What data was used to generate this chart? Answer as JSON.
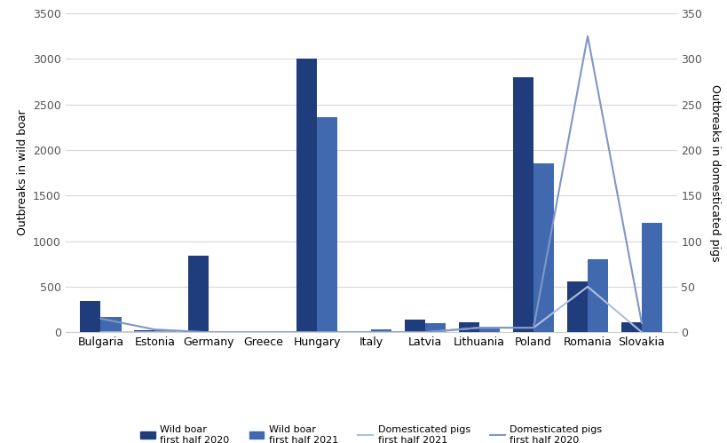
{
  "countries": [
    "Bulgaria",
    "Estonia",
    "Germany",
    "Greece",
    "Hungary",
    "Italy",
    "Latvia",
    "Lithuania",
    "Poland",
    "Romania",
    "Slovakia"
  ],
  "wild_boar_2020": [
    340,
    25,
    840,
    0,
    3000,
    0,
    140,
    110,
    2800,
    560,
    110
  ],
  "wild_boar_2021": [
    170,
    20,
    0,
    0,
    2360,
    35,
    100,
    65,
    1850,
    800,
    1200
  ],
  "dom_pigs_2021": [
    0,
    0,
    0,
    0,
    0,
    0,
    0,
    5,
    5,
    50,
    0
  ],
  "dom_pigs_2020": [
    15,
    3,
    0,
    0,
    0,
    0,
    0,
    5,
    5,
    325,
    10
  ],
  "bar_color_2020": "#1f3d7c",
  "bar_color_2021": "#4169b0",
  "line_color_2021": "#b0bedd",
  "line_color_2020": "#8096c8",
  "ylim_left": [
    0,
    3500
  ],
  "ylim_right": [
    0,
    350
  ],
  "yticks_left": [
    0,
    500,
    1000,
    1500,
    2000,
    2500,
    3000,
    3500
  ],
  "yticks_right": [
    0,
    50,
    100,
    150,
    200,
    250,
    300,
    350
  ],
  "ylabel_left": "Outbreaks in wild boar",
  "ylabel_right": "Outbreaks in domesticated pigs",
  "legend_labels": [
    "Wild boar\nfirst half 2020",
    "Wild boar\nfirst half 2021",
    "Domesticated pigs\nfirst half 2021",
    "Domesticated pigs\nfirst half 2020"
  ],
  "background_color": "#ffffff",
  "bar_width": 0.38,
  "grid_color": "#d8d8d8",
  "spine_color": "#cccccc",
  "tick_color": "#555555",
  "label_fontsize": 9,
  "tick_fontsize": 9,
  "legend_fontsize": 8
}
